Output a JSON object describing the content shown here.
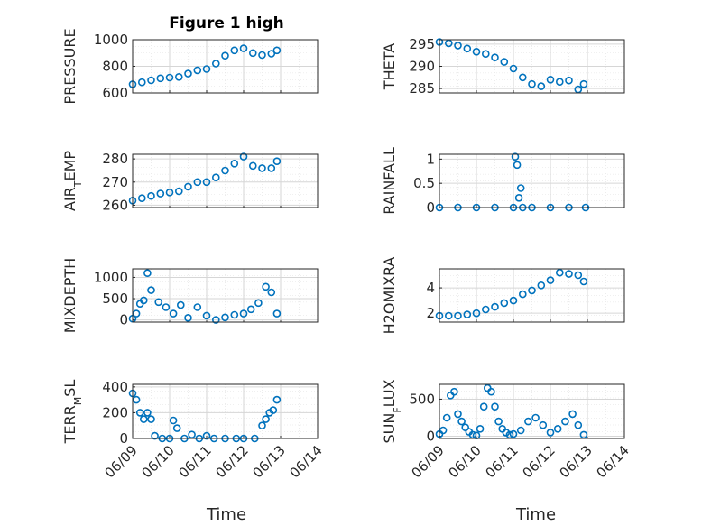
{
  "figure_title": "Figure 1 high",
  "chart_data": [
    {
      "type": "scatter",
      "title": "Figure 1 high",
      "ylabel": "PRESSURE",
      "ylim": [
        600,
        1000
      ],
      "yticks": [
        600,
        800,
        1000
      ],
      "xlim": [
        0,
        5
      ],
      "xticks": [
        "06/09",
        "06/10",
        "06/11",
        "06/12",
        "06/13",
        "06/14"
      ],
      "grid": true,
      "x": [
        0,
        0.25,
        0.5,
        0.75,
        1,
        1.25,
        1.5,
        1.75,
        2,
        2.25,
        2.5,
        2.75,
        3,
        3.25,
        3.5,
        3.75,
        3.9
      ],
      "y": [
        665,
        680,
        695,
        710,
        715,
        720,
        745,
        770,
        780,
        820,
        880,
        920,
        935,
        900,
        885,
        895,
        920
      ]
    },
    {
      "type": "scatter",
      "ylabel": "THETA",
      "ylim": [
        284,
        296
      ],
      "yticks": [
        285,
        290,
        295
      ],
      "xlim": [
        0,
        5
      ],
      "xticks": [
        "06/09",
        "06/10",
        "06/11",
        "06/12",
        "06/13",
        "06/14"
      ],
      "grid": true,
      "x": [
        0,
        0.25,
        0.5,
        0.75,
        1,
        1.25,
        1.5,
        1.75,
        2,
        2.25,
        2.5,
        2.75,
        3,
        3.25,
        3.5,
        3.75,
        3.9
      ],
      "y": [
        295.5,
        295.2,
        294.7,
        294.0,
        293.3,
        292.8,
        292.0,
        291.0,
        289.5,
        287.5,
        286.0,
        285.5,
        287.0,
        286.5,
        286.8,
        284.8,
        286.0
      ]
    },
    {
      "type": "scatter",
      "ylabel": "AIR_TEMP",
      "ylim": [
        259,
        282
      ],
      "yticks": [
        260,
        270,
        280
      ],
      "xlim": [
        0,
        5
      ],
      "xticks": [
        "06/09",
        "06/10",
        "06/11",
        "06/12",
        "06/13",
        "06/14"
      ],
      "grid": true,
      "x": [
        0,
        0.25,
        0.5,
        0.75,
        1,
        1.25,
        1.5,
        1.75,
        2,
        2.25,
        2.5,
        2.75,
        3,
        3.25,
        3.5,
        3.75,
        3.9
      ],
      "y": [
        262,
        263,
        264,
        265,
        265.5,
        266,
        268,
        270,
        270,
        272,
        275,
        278,
        281,
        277,
        276,
        276,
        279
      ]
    },
    {
      "type": "scatter",
      "ylabel": "RAINFALL",
      "ylim": [
        0,
        1.1
      ],
      "yticks": [
        0,
        0.5,
        1
      ],
      "xlim": [
        0,
        5
      ],
      "xticks": [
        "06/09",
        "06/10",
        "06/11",
        "06/12",
        "06/13",
        "06/14"
      ],
      "grid": true,
      "x": [
        0,
        0.5,
        1,
        1.5,
        2,
        2.05,
        2.1,
        2.15,
        2.2,
        2.25,
        2.5,
        3,
        3.5,
        3.95
      ],
      "y": [
        0,
        0,
        0,
        0,
        0,
        1.05,
        0.88,
        0.2,
        0.4,
        0,
        0,
        0,
        0,
        0
      ]
    },
    {
      "type": "scatter",
      "ylabel": "MIXDEPTH",
      "ylim": [
        -50,
        1200
      ],
      "yticks": [
        0,
        500,
        1000
      ],
      "xlim": [
        0,
        5
      ],
      "xticks": [
        "06/09",
        "06/10",
        "06/11",
        "06/12",
        "06/13",
        "06/14"
      ],
      "grid": true,
      "x": [
        0,
        0.1,
        0.2,
        0.3,
        0.4,
        0.5,
        0.7,
        0.9,
        1.1,
        1.3,
        1.5,
        1.75,
        2,
        2.25,
        2.5,
        2.75,
        3,
        3.2,
        3.4,
        3.6,
        3.75,
        3.9
      ],
      "y": [
        30,
        150,
        380,
        460,
        1100,
        700,
        420,
        300,
        150,
        350,
        50,
        300,
        100,
        0,
        60,
        120,
        150,
        250,
        400,
        780,
        650,
        150
      ]
    },
    {
      "type": "scatter",
      "ylabel": "H2OMIXRA",
      "ylim": [
        1.3,
        5.5
      ],
      "yticks": [
        2,
        4
      ],
      "xlim": [
        0,
        5
      ],
      "xticks": [
        "06/09",
        "06/10",
        "06/11",
        "06/12",
        "06/13",
        "06/14"
      ],
      "grid": true,
      "x": [
        0,
        0.25,
        0.5,
        0.75,
        1,
        1.25,
        1.5,
        1.75,
        2,
        2.25,
        2.5,
        2.75,
        3,
        3.25,
        3.5,
        3.75,
        3.9
      ],
      "y": [
        1.8,
        1.8,
        1.8,
        1.9,
        2.0,
        2.3,
        2.5,
        2.8,
        3.0,
        3.5,
        3.8,
        4.2,
        4.6,
        5.2,
        5.1,
        5.0,
        4.5
      ]
    },
    {
      "type": "scatter",
      "ylabel": "TERR_MSL",
      "ylim": [
        0,
        420
      ],
      "yticks": [
        0,
        200,
        400
      ],
      "xlim": [
        0,
        5
      ],
      "xticks": [
        "06/09",
        "06/10",
        "06/11",
        "06/12",
        "06/13",
        "06/14"
      ],
      "grid": true,
      "x": [
        0,
        0.1,
        0.2,
        0.3,
        0.4,
        0.5,
        0.6,
        0.8,
        1,
        1.1,
        1.2,
        1.4,
        1.6,
        1.8,
        2,
        2.2,
        2.5,
        2.8,
        3,
        3.3,
        3.5,
        3.6,
        3.7,
        3.8,
        3.9
      ],
      "y": [
        350,
        300,
        200,
        150,
        200,
        150,
        20,
        0,
        0,
        140,
        80,
        0,
        30,
        0,
        20,
        0,
        0,
        0,
        0,
        0,
        100,
        150,
        200,
        220,
        300
      ]
    },
    {
      "type": "scatter",
      "ylabel": "SUN_FLUX",
      "ylim": [
        -30,
        700
      ],
      "yticks": [
        0,
        500
      ],
      "xlim": [
        0,
        5
      ],
      "xticks": [
        "06/09",
        "06/10",
        "06/11",
        "06/12",
        "06/13",
        "06/14"
      ],
      "grid": true,
      "x": [
        0,
        0.1,
        0.2,
        0.3,
        0.4,
        0.5,
        0.6,
        0.7,
        0.8,
        0.9,
        1,
        1.1,
        1.2,
        1.3,
        1.4,
        1.5,
        1.6,
        1.7,
        1.8,
        1.9,
        2,
        2.2,
        2.4,
        2.6,
        2.8,
        3,
        3.2,
        3.4,
        3.6,
        3.75,
        3.9
      ],
      "y": [
        30,
        80,
        250,
        550,
        600,
        300,
        200,
        120,
        60,
        20,
        10,
        100,
        400,
        650,
        600,
        400,
        200,
        100,
        50,
        20,
        30,
        80,
        200,
        250,
        150,
        50,
        100,
        200,
        300,
        150,
        20
      ]
    }
  ],
  "xlabel": "Time"
}
